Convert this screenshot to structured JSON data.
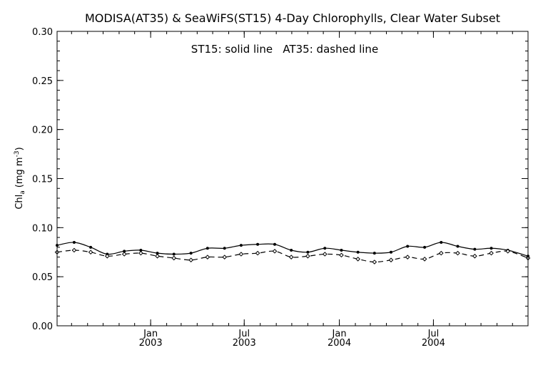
{
  "chart_data": {
    "type": "line",
    "title": "MODISA(AT35) & SeaWiFS(ST15) 4-Day Chlorophylls, Clear Water Subset",
    "annotation": "ST15: solid line   AT35: dashed line",
    "ylabel_main": "Chl",
    "ylabel_sub": "a",
    "ylabel_unit": "(mg m",
    "ylabel_exp": "-3",
    "ylabel_close": ")",
    "xlabel": "",
    "ylim": [
      0.0,
      0.3
    ],
    "y_ticks": [
      "0.00",
      "0.05",
      "0.10",
      "0.15",
      "0.20",
      "0.25",
      "0.30"
    ],
    "x_range": [
      "2002-07-04",
      "2004-12-31"
    ],
    "x_ticks": [
      {
        "date": "2003-01-01",
        "month": "Jan",
        "year": "2003"
      },
      {
        "date": "2003-07-01",
        "month": "Jul",
        "year": "2003"
      },
      {
        "date": "2004-01-01",
        "month": "Jan",
        "year": "2004"
      },
      {
        "date": "2004-07-01",
        "month": "Jul",
        "year": "2004"
      }
    ],
    "grid": false,
    "series": [
      {
        "id": "st15",
        "line_style": "solid",
        "marker": "dot",
        "color": "#000000",
        "points": [
          {
            "x": "2002-07-04",
            "y": 0.082
          },
          {
            "x": "2002-08-06",
            "y": 0.085
          },
          {
            "x": "2002-09-07",
            "y": 0.08
          },
          {
            "x": "2002-10-09",
            "y": 0.073
          },
          {
            "x": "2002-11-11",
            "y": 0.076
          },
          {
            "x": "2002-12-13",
            "y": 0.077
          },
          {
            "x": "2003-01-14",
            "y": 0.074
          },
          {
            "x": "2003-02-15",
            "y": 0.073
          },
          {
            "x": "2003-03-20",
            "y": 0.074
          },
          {
            "x": "2003-04-21",
            "y": 0.079
          },
          {
            "x": "2003-05-24",
            "y": 0.079
          },
          {
            "x": "2003-06-25",
            "y": 0.082
          },
          {
            "x": "2003-07-27",
            "y": 0.083
          },
          {
            "x": "2003-08-29",
            "y": 0.083
          },
          {
            "x": "2003-09-30",
            "y": 0.077
          },
          {
            "x": "2003-11-01",
            "y": 0.075
          },
          {
            "x": "2003-12-04",
            "y": 0.079
          },
          {
            "x": "2004-01-05",
            "y": 0.077
          },
          {
            "x": "2004-02-06",
            "y": 0.075
          },
          {
            "x": "2004-03-09",
            "y": 0.074
          },
          {
            "x": "2004-04-10",
            "y": 0.075
          },
          {
            "x": "2004-05-12",
            "y": 0.081
          },
          {
            "x": "2004-06-14",
            "y": 0.08
          },
          {
            "x": "2004-07-16",
            "y": 0.085
          },
          {
            "x": "2004-08-17",
            "y": 0.081
          },
          {
            "x": "2004-09-19",
            "y": 0.078
          },
          {
            "x": "2004-10-21",
            "y": 0.079
          },
          {
            "x": "2004-11-22",
            "y": 0.077
          },
          {
            "x": "2004-12-31",
            "y": 0.071
          }
        ]
      },
      {
        "id": "at35",
        "line_style": "dashed",
        "marker": "diamond",
        "color": "#000000",
        "points": [
          {
            "x": "2002-07-04",
            "y": 0.075
          },
          {
            "x": "2002-08-06",
            "y": 0.077
          },
          {
            "x": "2002-09-07",
            "y": 0.075
          },
          {
            "x": "2002-10-09",
            "y": 0.071
          },
          {
            "x": "2002-11-11",
            "y": 0.073
          },
          {
            "x": "2002-12-13",
            "y": 0.074
          },
          {
            "x": "2003-01-14",
            "y": 0.071
          },
          {
            "x": "2003-02-15",
            "y": 0.069
          },
          {
            "x": "2003-03-20",
            "y": 0.067
          },
          {
            "x": "2003-04-21",
            "y": 0.07
          },
          {
            "x": "2003-05-24",
            "y": 0.07
          },
          {
            "x": "2003-06-25",
            "y": 0.073
          },
          {
            "x": "2003-07-27",
            "y": 0.074
          },
          {
            "x": "2003-08-29",
            "y": 0.076
          },
          {
            "x": "2003-09-30",
            "y": 0.07
          },
          {
            "x": "2003-11-01",
            "y": 0.071
          },
          {
            "x": "2003-12-04",
            "y": 0.073
          },
          {
            "x": "2004-01-05",
            "y": 0.072
          },
          {
            "x": "2004-02-06",
            "y": 0.068
          },
          {
            "x": "2004-03-09",
            "y": 0.065
          },
          {
            "x": "2004-04-10",
            "y": 0.067
          },
          {
            "x": "2004-05-12",
            "y": 0.07
          },
          {
            "x": "2004-06-14",
            "y": 0.068
          },
          {
            "x": "2004-07-16",
            "y": 0.074
          },
          {
            "x": "2004-08-17",
            "y": 0.074
          },
          {
            "x": "2004-09-19",
            "y": 0.071
          },
          {
            "x": "2004-10-21",
            "y": 0.074
          },
          {
            "x": "2004-11-22",
            "y": 0.076
          },
          {
            "x": "2004-12-31",
            "y": 0.069
          }
        ]
      }
    ]
  }
}
